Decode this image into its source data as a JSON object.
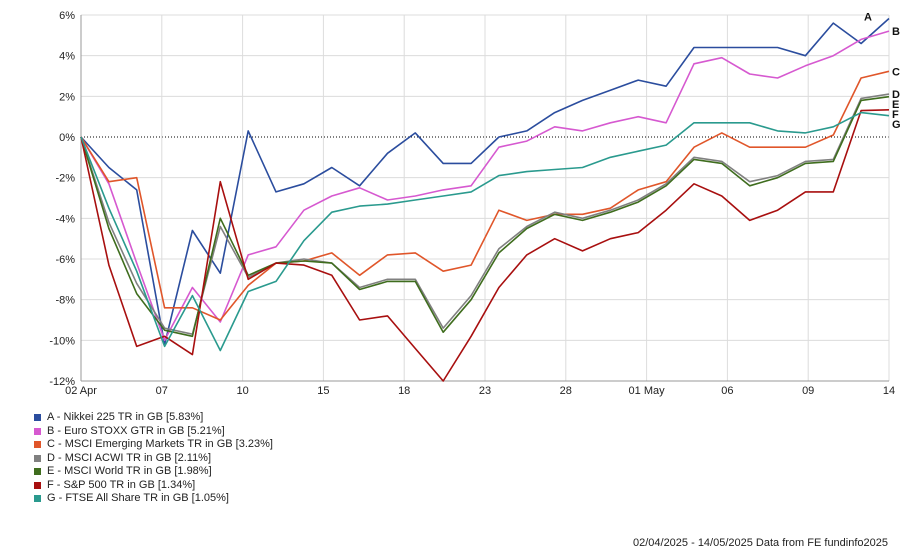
{
  "chart_data": {
    "type": "line",
    "x_tick_labels": [
      "02 Apr",
      "07",
      "10",
      "15",
      "18",
      "23",
      "28",
      "01 May",
      "06",
      "09",
      "14"
    ],
    "ylim": [
      -12,
      6
    ],
    "y_ticks": [
      6,
      4,
      2,
      0,
      -2,
      -4,
      -6,
      -8,
      -10,
      -12
    ],
    "y_tick_suffix": "%",
    "grid": true,
    "zero_line": "dotted",
    "series": [
      {
        "letter": "A",
        "name": "A - Nikkei 225 TR in GB [5.83%]",
        "color": "#2b4d9e",
        "values": [
          0,
          -1.5,
          -2.6,
          -10.2,
          -4.6,
          -6.7,
          0.3,
          -2.7,
          -2.3,
          -1.5,
          -2.4,
          -0.8,
          0.2,
          -1.3,
          -1.3,
          0.0,
          0.3,
          1.2,
          1.8,
          2.3,
          2.8,
          2.5,
          4.4,
          4.4,
          4.4,
          4.4,
          4.0,
          5.6,
          4.6,
          5.83
        ]
      },
      {
        "letter": "B",
        "name": "B - Euro STOXX GTR in GB [5.21%]",
        "color": "#d659d0",
        "values": [
          0,
          -2.3,
          -6.2,
          -10.0,
          -7.4,
          -9.1,
          -5.8,
          -5.4,
          -3.6,
          -2.9,
          -2.5,
          -3.1,
          -2.9,
          -2.6,
          -2.4,
          -0.5,
          -0.2,
          0.5,
          0.3,
          0.7,
          1.0,
          0.7,
          3.6,
          3.9,
          3.1,
          2.9,
          3.5,
          4.0,
          4.8,
          5.21
        ]
      },
      {
        "letter": "C",
        "name": "C - MSCI Emerging Markets TR in GB [3.23%]",
        "color": "#e0562a",
        "values": [
          0,
          -2.2,
          -2.0,
          -8.4,
          -8.4,
          -9.0,
          -7.3,
          -6.2,
          -6.1,
          -5.7,
          -6.8,
          -5.8,
          -5.7,
          -6.6,
          -6.3,
          -3.6,
          -4.1,
          -3.8,
          -3.8,
          -3.5,
          -2.6,
          -2.2,
          -0.5,
          0.2,
          -0.5,
          -0.5,
          -0.5,
          0.1,
          2.9,
          3.23
        ]
      },
      {
        "letter": "D",
        "name": "D - MSCI ACWI TR in GB [2.11%]",
        "color": "#808080",
        "values": [
          0,
          -4.2,
          -7.2,
          -9.4,
          -9.7,
          -4.4,
          -6.9,
          -6.2,
          -6.0,
          -6.2,
          -7.4,
          -7.0,
          -7.0,
          -9.4,
          -7.8,
          -5.5,
          -4.4,
          -3.7,
          -4.0,
          -3.6,
          -3.1,
          -2.3,
          -1.0,
          -1.2,
          -2.2,
          -1.9,
          -1.2,
          -1.1,
          1.9,
          2.11
        ]
      },
      {
        "letter": "E",
        "name": "E - MSCI World TR in GB [1.98%]",
        "color": "#3f6d1e",
        "values": [
          0,
          -4.5,
          -7.7,
          -9.5,
          -9.8,
          -4.0,
          -6.8,
          -6.2,
          -6.1,
          -6.2,
          -7.5,
          -7.1,
          -7.1,
          -9.6,
          -8.0,
          -5.7,
          -4.5,
          -3.8,
          -4.1,
          -3.7,
          -3.2,
          -2.4,
          -1.1,
          -1.3,
          -2.4,
          -2.0,
          -1.3,
          -1.2,
          1.8,
          1.98
        ]
      },
      {
        "letter": "F",
        "name": "F - S&P 500 TR in GB [1.34%]",
        "color": "#a80f0f",
        "values": [
          0,
          -6.3,
          -10.3,
          -9.8,
          -10.7,
          -2.2,
          -7.0,
          -6.2,
          -6.3,
          -6.8,
          -9.0,
          -8.8,
          -10.4,
          -12.0,
          -9.8,
          -7.4,
          -5.8,
          -5.0,
          -5.6,
          -5.0,
          -4.7,
          -3.6,
          -2.3,
          -2.9,
          -4.1,
          -3.6,
          -2.7,
          -2.7,
          1.3,
          1.34
        ]
      },
      {
        "letter": "G",
        "name": "G - FTSE All Share TR in GB [1.05%]",
        "color": "#2a9a8e",
        "values": [
          0,
          -3.5,
          -6.6,
          -10.3,
          -7.8,
          -10.5,
          -7.6,
          -7.1,
          -5.1,
          -3.7,
          -3.4,
          -3.3,
          -3.1,
          -2.9,
          -2.7,
          -1.9,
          -1.7,
          -1.6,
          -1.5,
          -1.0,
          -0.7,
          -0.4,
          0.7,
          0.7,
          0.7,
          0.3,
          0.2,
          0.5,
          1.2,
          1.05
        ]
      }
    ],
    "footer": "02/04/2025 - 14/05/2025 Data from FE fundinfo2025"
  }
}
